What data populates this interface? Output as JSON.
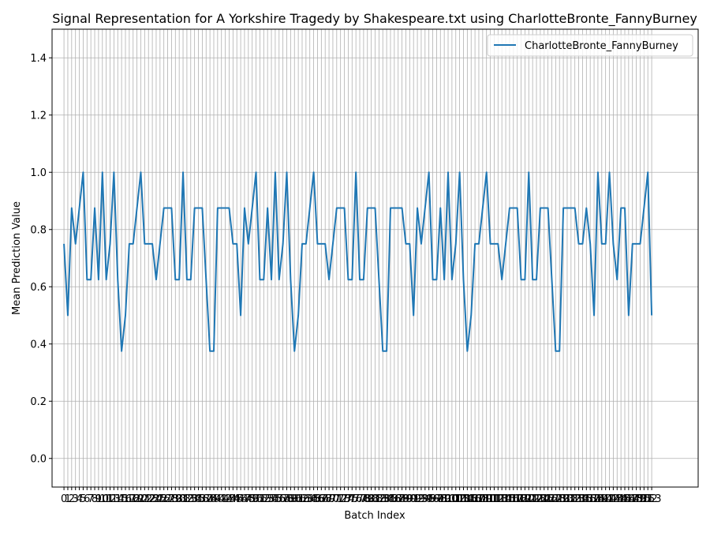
{
  "colors": {
    "series": "#1f77b4",
    "grid": "#b0b0b0",
    "axis": "#000000"
  },
  "chart_data": {
    "type": "line",
    "title": "Signal Representation for A Yorkshire Tragedy by Shakespeare.txt using CharlotteBronte_FannyBurney",
    "xlabel": "Batch Index",
    "ylabel": "Mean Prediction Value",
    "xlim": [
      -3.1,
      165.1
    ],
    "ylim": [
      -0.1,
      1.5
    ],
    "yticks": [
      0.0,
      0.2,
      0.4,
      0.6,
      0.8,
      1.0,
      1.2,
      1.4
    ],
    "ytick_labels": [
      "0.0",
      "0.2",
      "0.4",
      "0.6",
      "0.8",
      "1.0",
      "1.2",
      "1.4"
    ],
    "xtick_count": 154,
    "grid": true,
    "legend": {
      "placement": "top-right",
      "entries": [
        "CharlotteBronte_FannyBurney"
      ]
    },
    "series": [
      {
        "name": "CharlotteBronte_FannyBurney",
        "values": [
          0.75,
          0.5,
          0.875,
          0.75,
          0.875,
          1.0,
          0.625,
          0.625,
          0.875,
          0.625,
          1.0,
          0.625,
          0.75,
          1.0,
          0.625,
          0.375,
          0.5,
          0.75,
          0.75,
          0.875,
          1.0,
          0.75,
          0.75,
          0.75,
          0.625,
          0.75,
          0.875,
          0.875,
          0.875,
          0.625,
          0.625,
          1.0,
          0.625,
          0.625,
          0.875,
          0.875,
          0.875,
          0.625,
          0.375,
          0.375,
          0.875,
          0.875,
          0.875,
          0.875,
          0.75,
          0.75,
          0.5,
          0.875,
          0.75,
          0.875,
          1.0,
          0.625,
          0.625,
          0.875,
          0.625,
          1.0,
          0.625,
          0.75,
          1.0,
          0.625,
          0.375,
          0.5,
          0.75,
          0.75,
          0.875,
          1.0,
          0.75,
          0.75,
          0.75,
          0.625,
          0.75,
          0.875,
          0.875,
          0.875,
          0.625,
          0.625,
          1.0,
          0.625,
          0.625,
          0.875,
          0.875,
          0.875,
          0.625,
          0.375,
          0.375,
          0.875,
          0.875,
          0.875,
          0.875,
          0.75,
          0.75,
          0.5,
          0.875,
          0.75,
          0.875,
          1.0,
          0.625,
          0.625,
          0.875,
          0.625,
          1.0,
          0.625,
          0.75,
          1.0,
          0.625,
          0.375,
          0.5,
          0.75,
          0.75,
          0.875,
          1.0,
          0.75,
          0.75,
          0.75,
          0.625,
          0.75,
          0.875,
          0.875,
          0.875,
          0.625,
          0.625,
          1.0,
          0.625,
          0.625,
          0.875,
          0.875,
          0.875,
          0.625,
          0.375,
          0.375,
          0.875,
          0.875,
          0.875,
          0.875,
          0.75,
          0.75,
          0.875,
          0.75,
          0.5,
          1.0,
          0.75,
          0.75,
          1.0,
          0.75,
          0.625,
          0.875,
          0.875,
          0.5,
          0.75,
          0.75,
          0.75,
          0.875,
          1.0,
          0.5
        ]
      }
    ]
  }
}
